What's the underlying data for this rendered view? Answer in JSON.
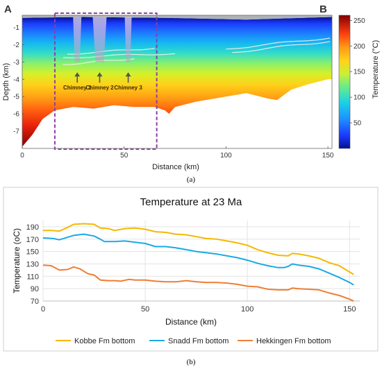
{
  "figure": {
    "panel_a_caption": "(a)",
    "panel_b_caption": "(b)"
  },
  "chart_data": [
    {
      "type": "heatmap",
      "section_start_label": "A",
      "section_end_label": "B",
      "xlabel": "Distance (km)",
      "ylabel": "Depth (km)",
      "colorbar_label": "Temperature (°C)",
      "xlim": [
        0,
        152
      ],
      "ylim": [
        -8,
        -0.3
      ],
      "clim": [
        0,
        260
      ],
      "x_ticks": [
        "0",
        "50",
        "100",
        "150"
      ],
      "y_ticks": [
        "-1",
        "-2",
        "-3",
        "-4",
        "-5",
        "-6",
        "-7"
      ],
      "colorbar_ticks": [
        "50",
        "100",
        "150",
        "200",
        "250"
      ],
      "annotations": [
        "Chimney 1",
        "Chimney 2",
        "Chimney 3"
      ],
      "chimney_x_km": [
        27,
        38,
        52
      ],
      "highlight_box_km": [
        16,
        66
      ],
      "seabed_depth_km": [
        [
          0,
          -0.45
        ],
        [
          30,
          -0.4
        ],
        [
          70,
          -0.45
        ],
        [
          110,
          -0.55
        ],
        [
          152,
          -0.4
        ]
      ],
      "basement_depth_km": [
        [
          0,
          -7.9
        ],
        [
          5,
          -7.2
        ],
        [
          10,
          -6.3
        ],
        [
          16,
          -5.8
        ],
        [
          25,
          -5.6
        ],
        [
          35,
          -5.7
        ],
        [
          45,
          -5.5
        ],
        [
          55,
          -5.6
        ],
        [
          65,
          -5.6
        ],
        [
          70,
          -5.8
        ],
        [
          72,
          -6.0
        ],
        [
          75,
          -5.6
        ],
        [
          85,
          -5.3
        ],
        [
          100,
          -5.0
        ],
        [
          110,
          -4.8
        ],
        [
          120,
          -5.1
        ],
        [
          125,
          -5.2
        ],
        [
          132,
          -4.6
        ],
        [
          140,
          -4.3
        ],
        [
          150,
          -4.0
        ],
        [
          152,
          -4.0
        ]
      ]
    },
    {
      "type": "line",
      "title": "Temperature at 23 Ma",
      "xlabel": "Distance (km)",
      "ylabel": "Temperature (oC)",
      "xlim": [
        0,
        155
      ],
      "ylim": [
        70,
        200
      ],
      "x_ticks": [
        0,
        50,
        100,
        150
      ],
      "y_ticks": [
        70,
        90,
        110,
        130,
        150,
        170,
        190
      ],
      "legend_position": "bottom",
      "series": [
        {
          "name": "Kobbe Fm bottom",
          "color": "#f5b800",
          "points": [
            [
              0,
              184
            ],
            [
              4,
              184
            ],
            [
              8,
              183
            ],
            [
              12,
              189
            ],
            [
              15,
              194
            ],
            [
              20,
              195
            ],
            [
              25,
              194
            ],
            [
              28,
              188
            ],
            [
              32,
              187
            ],
            [
              35,
              184
            ],
            [
              40,
              187
            ],
            [
              45,
              188
            ],
            [
              50,
              186
            ],
            [
              55,
              182
            ],
            [
              60,
              181
            ],
            [
              65,
              178
            ],
            [
              70,
              177
            ],
            [
              75,
              174
            ],
            [
              80,
              171
            ],
            [
              85,
              170
            ],
            [
              90,
              167
            ],
            [
              95,
              164
            ],
            [
              100,
              160
            ],
            [
              105,
              153
            ],
            [
              110,
              148
            ],
            [
              115,
              144
            ],
            [
              120,
              143
            ],
            [
              122,
              147
            ],
            [
              125,
              146
            ],
            [
              130,
              143
            ],
            [
              135,
              139
            ],
            [
              140,
              132
            ],
            [
              145,
              127
            ],
            [
              150,
              117
            ],
            [
              152,
              113
            ]
          ]
        },
        {
          "name": "Snadd Fm bottom",
          "color": "#1aa9e6",
          "points": [
            [
              0,
              172
            ],
            [
              5,
              171
            ],
            [
              8,
              169
            ],
            [
              12,
              173
            ],
            [
              15,
              176
            ],
            [
              20,
              178
            ],
            [
              25,
              175
            ],
            [
              28,
              170
            ],
            [
              30,
              166
            ],
            [
              35,
              166
            ],
            [
              40,
              167
            ],
            [
              45,
              165
            ],
            [
              50,
              163
            ],
            [
              55,
              158
            ],
            [
              60,
              158
            ],
            [
              65,
              156
            ],
            [
              70,
              153
            ],
            [
              75,
              150
            ],
            [
              80,
              148
            ],
            [
              85,
              146
            ],
            [
              90,
              143
            ],
            [
              95,
              140
            ],
            [
              100,
              136
            ],
            [
              105,
              131
            ],
            [
              110,
              127
            ],
            [
              115,
              124
            ],
            [
              118,
              124
            ],
            [
              120,
              126
            ],
            [
              122,
              130
            ],
            [
              125,
              128
            ],
            [
              130,
              126
            ],
            [
              135,
              122
            ],
            [
              140,
              115
            ],
            [
              145,
              108
            ],
            [
              150,
              100
            ],
            [
              152,
              96
            ]
          ]
        },
        {
          "name": "Hekkingen Fm bottom",
          "color": "#ef7d32",
          "points": [
            [
              0,
              128
            ],
            [
              4,
              127
            ],
            [
              8,
              120
            ],
            [
              12,
              121
            ],
            [
              15,
              125
            ],
            [
              18,
              122
            ],
            [
              22,
              114
            ],
            [
              25,
              112
            ],
            [
              28,
              104
            ],
            [
              32,
              103
            ],
            [
              35,
              103
            ],
            [
              38,
              102
            ],
            [
              42,
              105
            ],
            [
              45,
              104
            ],
            [
              50,
              104
            ],
            [
              55,
              102
            ],
            [
              60,
              101
            ],
            [
              65,
              101
            ],
            [
              70,
              103
            ],
            [
              75,
              101
            ],
            [
              80,
              100
            ],
            [
              85,
              100
            ],
            [
              90,
              99
            ],
            [
              95,
              97
            ],
            [
              100,
              94
            ],
            [
              105,
              93
            ],
            [
              110,
              89
            ],
            [
              115,
              88
            ],
            [
              120,
              88
            ],
            [
              122,
              91
            ],
            [
              125,
              90
            ],
            [
              130,
              89
            ],
            [
              135,
              88
            ],
            [
              140,
              83
            ],
            [
              145,
              79
            ],
            [
              150,
              73
            ],
            [
              152,
              70
            ]
          ]
        }
      ]
    }
  ]
}
